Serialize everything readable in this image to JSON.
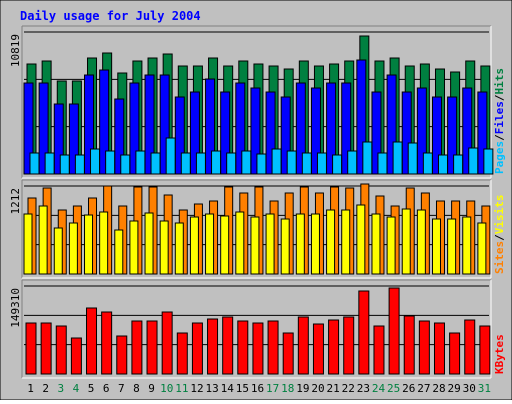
{
  "chart_data": {
    "type": "bar",
    "title": "Daily usage for July 2004",
    "days": [
      "1",
      "2",
      "3",
      "4",
      "5",
      "6",
      "7",
      "8",
      "9",
      "10",
      "11",
      "12",
      "13",
      "14",
      "15",
      "16",
      "17",
      "18",
      "19",
      "20",
      "21",
      "22",
      "23",
      "24",
      "25",
      "26",
      "27",
      "28",
      "29",
      "30",
      "31"
    ],
    "weekend_days": [
      "3",
      "4",
      "10",
      "11",
      "17",
      "18",
      "24",
      "25",
      "31"
    ],
    "colors": {
      "background": "#c0c0c0",
      "title": "#0000ff",
      "hits": "#008040",
      "files": "#0000ff",
      "pages": "#00c0ff",
      "visits": "#ffff00",
      "sites": "#ff8000",
      "kbytes": "#ff0000",
      "weekday_label": "#000000",
      "weekend_label": "#008040"
    },
    "panels": [
      {
        "max_label": "10819",
        "ymax": 10819,
        "series": [
          {
            "name": "Hits",
            "values": [
              8370,
              8620,
              7060,
              7060,
              8860,
              9240,
              7660,
              8620,
              8860,
              9130,
              8240,
              8240,
              8860,
              8240,
              8620,
              8370,
              8240,
              8000,
              8620,
              8240,
              8370,
              8620,
              10500,
              8620,
              8860,
              8240,
              8370,
              8000,
              7750,
              8620,
              8240
            ]
          },
          {
            "name": "Files",
            "values": [
              6920,
              6920,
              5300,
              5300,
              7520,
              7950,
              5700,
              6920,
              7520,
              7520,
              5840,
              6280,
              7250,
              6280,
              6920,
              6560,
              6280,
              5840,
              6920,
              6560,
              6920,
              6920,
              8650,
              6280,
              7520,
              6280,
              6560,
              5840,
              5840,
              6560,
              6280
            ]
          },
          {
            "name": "Pages",
            "values": [
              1620,
              1620,
              1460,
              1460,
              1900,
              1790,
              1460,
              1750,
              1620,
              2720,
              1620,
              1620,
              1750,
              1620,
              1750,
              1550,
              1900,
              1750,
              1620,
              1620,
              1460,
              1750,
              2440,
              1620,
              2440,
              2350,
              1620,
              1460,
              1460,
              2000,
              1900
            ]
          }
        ],
        "legend": [
          "Pages",
          "/",
          "Files",
          "/",
          "Hits"
        ]
      },
      {
        "max_label": "1212",
        "ymax": 1212,
        "series": [
          {
            "name": "Sites",
            "values": [
              1050,
              1180,
              880,
              930,
              1050,
              1210,
              930,
              1200,
              1200,
              1090,
              880,
              970,
              1010,
              1200,
              1120,
              1200,
              1010,
              1120,
              1200,
              1120,
              1200,
              1180,
              1240,
              1080,
              930,
              1180,
              1120,
              1010,
              1010,
              1010,
              930
            ]
          },
          {
            "name": "Visits",
            "values": [
              820,
              930,
              630,
              700,
              810,
              850,
              610,
              730,
              840,
              730,
              700,
              780,
              830,
              800,
              860,
              780,
              830,
              760,
              830,
              820,
              880,
              880,
              950,
              820,
              790,
              900,
              880,
              760,
              760,
              780,
              700
            ]
          }
        ],
        "legend": [
          "Sites",
          "/",
          "Visits"
        ]
      },
      {
        "max_label": "149310",
        "ymax": 149310,
        "series": [
          {
            "name": "KBytes",
            "values": [
              87000,
              87000,
              82000,
              61000,
              112000,
              105000,
              64000,
              90000,
              90000,
              105000,
              70000,
              87000,
              94000,
              96000,
              90000,
              87000,
              90000,
              70000,
              96000,
              84000,
              92000,
              96000,
              140000,
              82000,
              146000,
              99000,
              90000,
              87000,
              70000,
              92000,
              82000
            ]
          }
        ],
        "legend": [
          "KBytes"
        ]
      }
    ]
  }
}
